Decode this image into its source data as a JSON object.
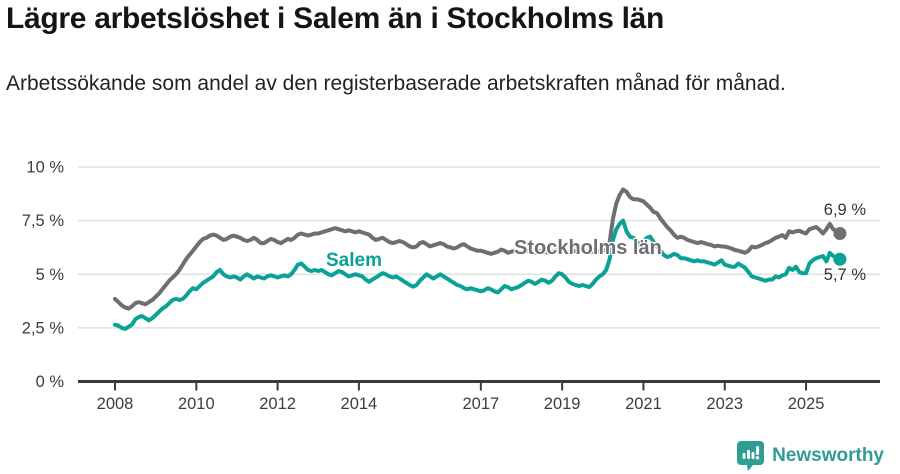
{
  "header": {
    "title": "Lägre arbetslöshet i Salem än i Stockholms län",
    "subtitle": "Arbetssökande som andel av den registerbaserade arbetskraften månad för månad."
  },
  "chart_data": {
    "type": "line",
    "title": "Lägre arbetslöshet i Salem än i Stockholms län",
    "unit": "%",
    "x_start": "2008-01",
    "x_end": "2025-11",
    "x_frequency": "monthly",
    "ylim": [
      0,
      10
    ],
    "grid": "horizontal",
    "y_ticks": [
      {
        "value": 10,
        "label": "10 %"
      },
      {
        "value": 7.5,
        "label": "7,5 %"
      },
      {
        "value": 5,
        "label": "5 %"
      },
      {
        "value": 2.5,
        "label": "2,5 %"
      },
      {
        "value": 0,
        "label": "0 %"
      }
    ],
    "x_ticks": [
      {
        "year": 2008,
        "label": "2008"
      },
      {
        "year": 2010,
        "label": "2010"
      },
      {
        "year": 2012,
        "label": "2012"
      },
      {
        "year": 2014,
        "label": "2014"
      },
      {
        "year": 2017,
        "label": "2017"
      },
      {
        "year": 2019,
        "label": "2019"
      },
      {
        "year": 2021,
        "label": "2021"
      },
      {
        "year": 2023,
        "label": "2023"
      },
      {
        "year": 2025,
        "label": "2025"
      }
    ],
    "series": [
      {
        "name": "Stockholms län",
        "color": "#6e6e73",
        "end_label": "6,9 %",
        "end_value": 6.9,
        "values": [
          3.85,
          3.7,
          3.55,
          3.45,
          3.4,
          3.5,
          3.65,
          3.7,
          3.65,
          3.6,
          3.7,
          3.8,
          3.95,
          4.1,
          4.3,
          4.5,
          4.7,
          4.85,
          5.0,
          5.2,
          5.45,
          5.7,
          5.9,
          6.1,
          6.3,
          6.5,
          6.65,
          6.7,
          6.8,
          6.85,
          6.8,
          6.7,
          6.6,
          6.65,
          6.75,
          6.8,
          6.75,
          6.7,
          6.6,
          6.55,
          6.6,
          6.7,
          6.6,
          6.45,
          6.45,
          6.55,
          6.65,
          6.6,
          6.5,
          6.45,
          6.55,
          6.65,
          6.6,
          6.7,
          6.85,
          6.9,
          6.85,
          6.8,
          6.85,
          6.9,
          6.9,
          6.95,
          7.0,
          7.05,
          7.1,
          7.15,
          7.1,
          7.05,
          7.0,
          7.05,
          7.0,
          6.95,
          7.0,
          6.95,
          6.9,
          6.85,
          6.7,
          6.6,
          6.65,
          6.7,
          6.6,
          6.5,
          6.45,
          6.5,
          6.55,
          6.5,
          6.4,
          6.3,
          6.25,
          6.3,
          6.45,
          6.5,
          6.4,
          6.3,
          6.35,
          6.4,
          6.45,
          6.4,
          6.3,
          6.25,
          6.2,
          6.25,
          6.35,
          6.4,
          6.3,
          6.2,
          6.15,
          6.1,
          6.1,
          6.05,
          6.0,
          5.95,
          6.0,
          6.05,
          6.15,
          6.1,
          6.0,
          6.05,
          6.1,
          6.05,
          6.0,
          6.05,
          6.1,
          6.05,
          6.0,
          6.05,
          6.1,
          6.05,
          6.0,
          6.05,
          6.1,
          6.1,
          6.1,
          6.05,
          6.0,
          6.05,
          6.1,
          6.15,
          6.1,
          6.05,
          6.0,
          6.05,
          6.1,
          6.1,
          6.1,
          6.15,
          6.5,
          7.6,
          8.3,
          8.7,
          8.95,
          8.85,
          8.6,
          8.5,
          8.5,
          8.45,
          8.4,
          8.25,
          8.1,
          7.9,
          7.85,
          7.6,
          7.4,
          7.2,
          7.05,
          6.85,
          6.7,
          6.75,
          6.7,
          6.6,
          6.55,
          6.5,
          6.45,
          6.5,
          6.45,
          6.4,
          6.37,
          6.3,
          6.33,
          6.3,
          6.29,
          6.25,
          6.2,
          6.13,
          6.1,
          6.05,
          6.0,
          6.1,
          6.29,
          6.25,
          6.3,
          6.37,
          6.45,
          6.5,
          6.6,
          6.7,
          6.75,
          6.83,
          6.7,
          7.0,
          6.95,
          7.0,
          7.03,
          6.95,
          6.9,
          7.1,
          7.15,
          7.2,
          7.07,
          6.9,
          7.1,
          7.35,
          7.1,
          7.0,
          6.9
        ]
      },
      {
        "name": "Salem",
        "color": "#0aa296",
        "end_label": "5,7 %",
        "end_value": 5.7,
        "values": [
          2.65,
          2.6,
          2.5,
          2.45,
          2.55,
          2.65,
          2.9,
          3.0,
          3.05,
          2.95,
          2.85,
          2.95,
          3.1,
          3.25,
          3.4,
          3.5,
          3.65,
          3.8,
          3.85,
          3.8,
          3.85,
          4.0,
          4.2,
          4.35,
          4.3,
          4.45,
          4.6,
          4.7,
          4.8,
          4.9,
          5.1,
          5.2,
          5.0,
          4.9,
          4.85,
          4.9,
          4.85,
          4.75,
          4.9,
          5.0,
          4.9,
          4.8,
          4.9,
          4.85,
          4.8,
          4.9,
          4.95,
          4.9,
          4.85,
          4.9,
          4.95,
          4.9,
          5.0,
          5.2,
          5.45,
          5.5,
          5.35,
          5.2,
          5.15,
          5.2,
          5.15,
          5.2,
          5.1,
          5.0,
          4.95,
          5.05,
          5.15,
          5.1,
          5.0,
          4.9,
          4.95,
          5.0,
          4.95,
          4.9,
          4.75,
          4.65,
          4.75,
          4.85,
          4.95,
          5.05,
          5.0,
          4.9,
          4.85,
          4.9,
          4.8,
          4.7,
          4.6,
          4.5,
          4.42,
          4.5,
          4.7,
          4.85,
          5.0,
          4.9,
          4.8,
          4.9,
          5.0,
          4.9,
          4.8,
          4.7,
          4.6,
          4.5,
          4.45,
          4.35,
          4.3,
          4.35,
          4.3,
          4.25,
          4.2,
          4.25,
          4.35,
          4.3,
          4.2,
          4.15,
          4.3,
          4.45,
          4.4,
          4.3,
          4.35,
          4.4,
          4.5,
          4.6,
          4.7,
          4.65,
          4.55,
          4.65,
          4.75,
          4.7,
          4.6,
          4.7,
          4.9,
          5.05,
          5.0,
          4.85,
          4.65,
          4.55,
          4.5,
          4.45,
          4.5,
          4.45,
          4.4,
          4.55,
          4.75,
          4.9,
          5.0,
          5.2,
          5.7,
          6.6,
          7.1,
          7.35,
          7.5,
          7.0,
          6.75,
          6.7,
          6.5,
          6.4,
          6.5,
          6.7,
          6.75,
          6.5,
          6.3,
          6.1,
          5.9,
          5.8,
          5.85,
          5.95,
          5.9,
          5.75,
          5.75,
          5.7,
          5.65,
          5.6,
          5.65,
          5.6,
          5.6,
          5.55,
          5.5,
          5.45,
          5.55,
          5.65,
          5.45,
          5.4,
          5.35,
          5.35,
          5.5,
          5.4,
          5.3,
          5.1,
          4.9,
          4.85,
          4.8,
          4.75,
          4.7,
          4.75,
          4.75,
          4.9,
          4.85,
          4.95,
          5.0,
          5.3,
          5.2,
          5.35,
          5.1,
          5.05,
          5.05,
          5.5,
          5.65,
          5.75,
          5.8,
          5.85,
          5.6,
          6.0,
          5.85,
          5.75,
          5.7
        ]
      }
    ],
    "colors": {
      "grid": "#e1e1e1",
      "axis": "#3a3a3a",
      "tick_text": "#3d3d3d",
      "brand_teal": "#2e9e94"
    }
  },
  "footer": {
    "brand": "Newsworthy"
  }
}
